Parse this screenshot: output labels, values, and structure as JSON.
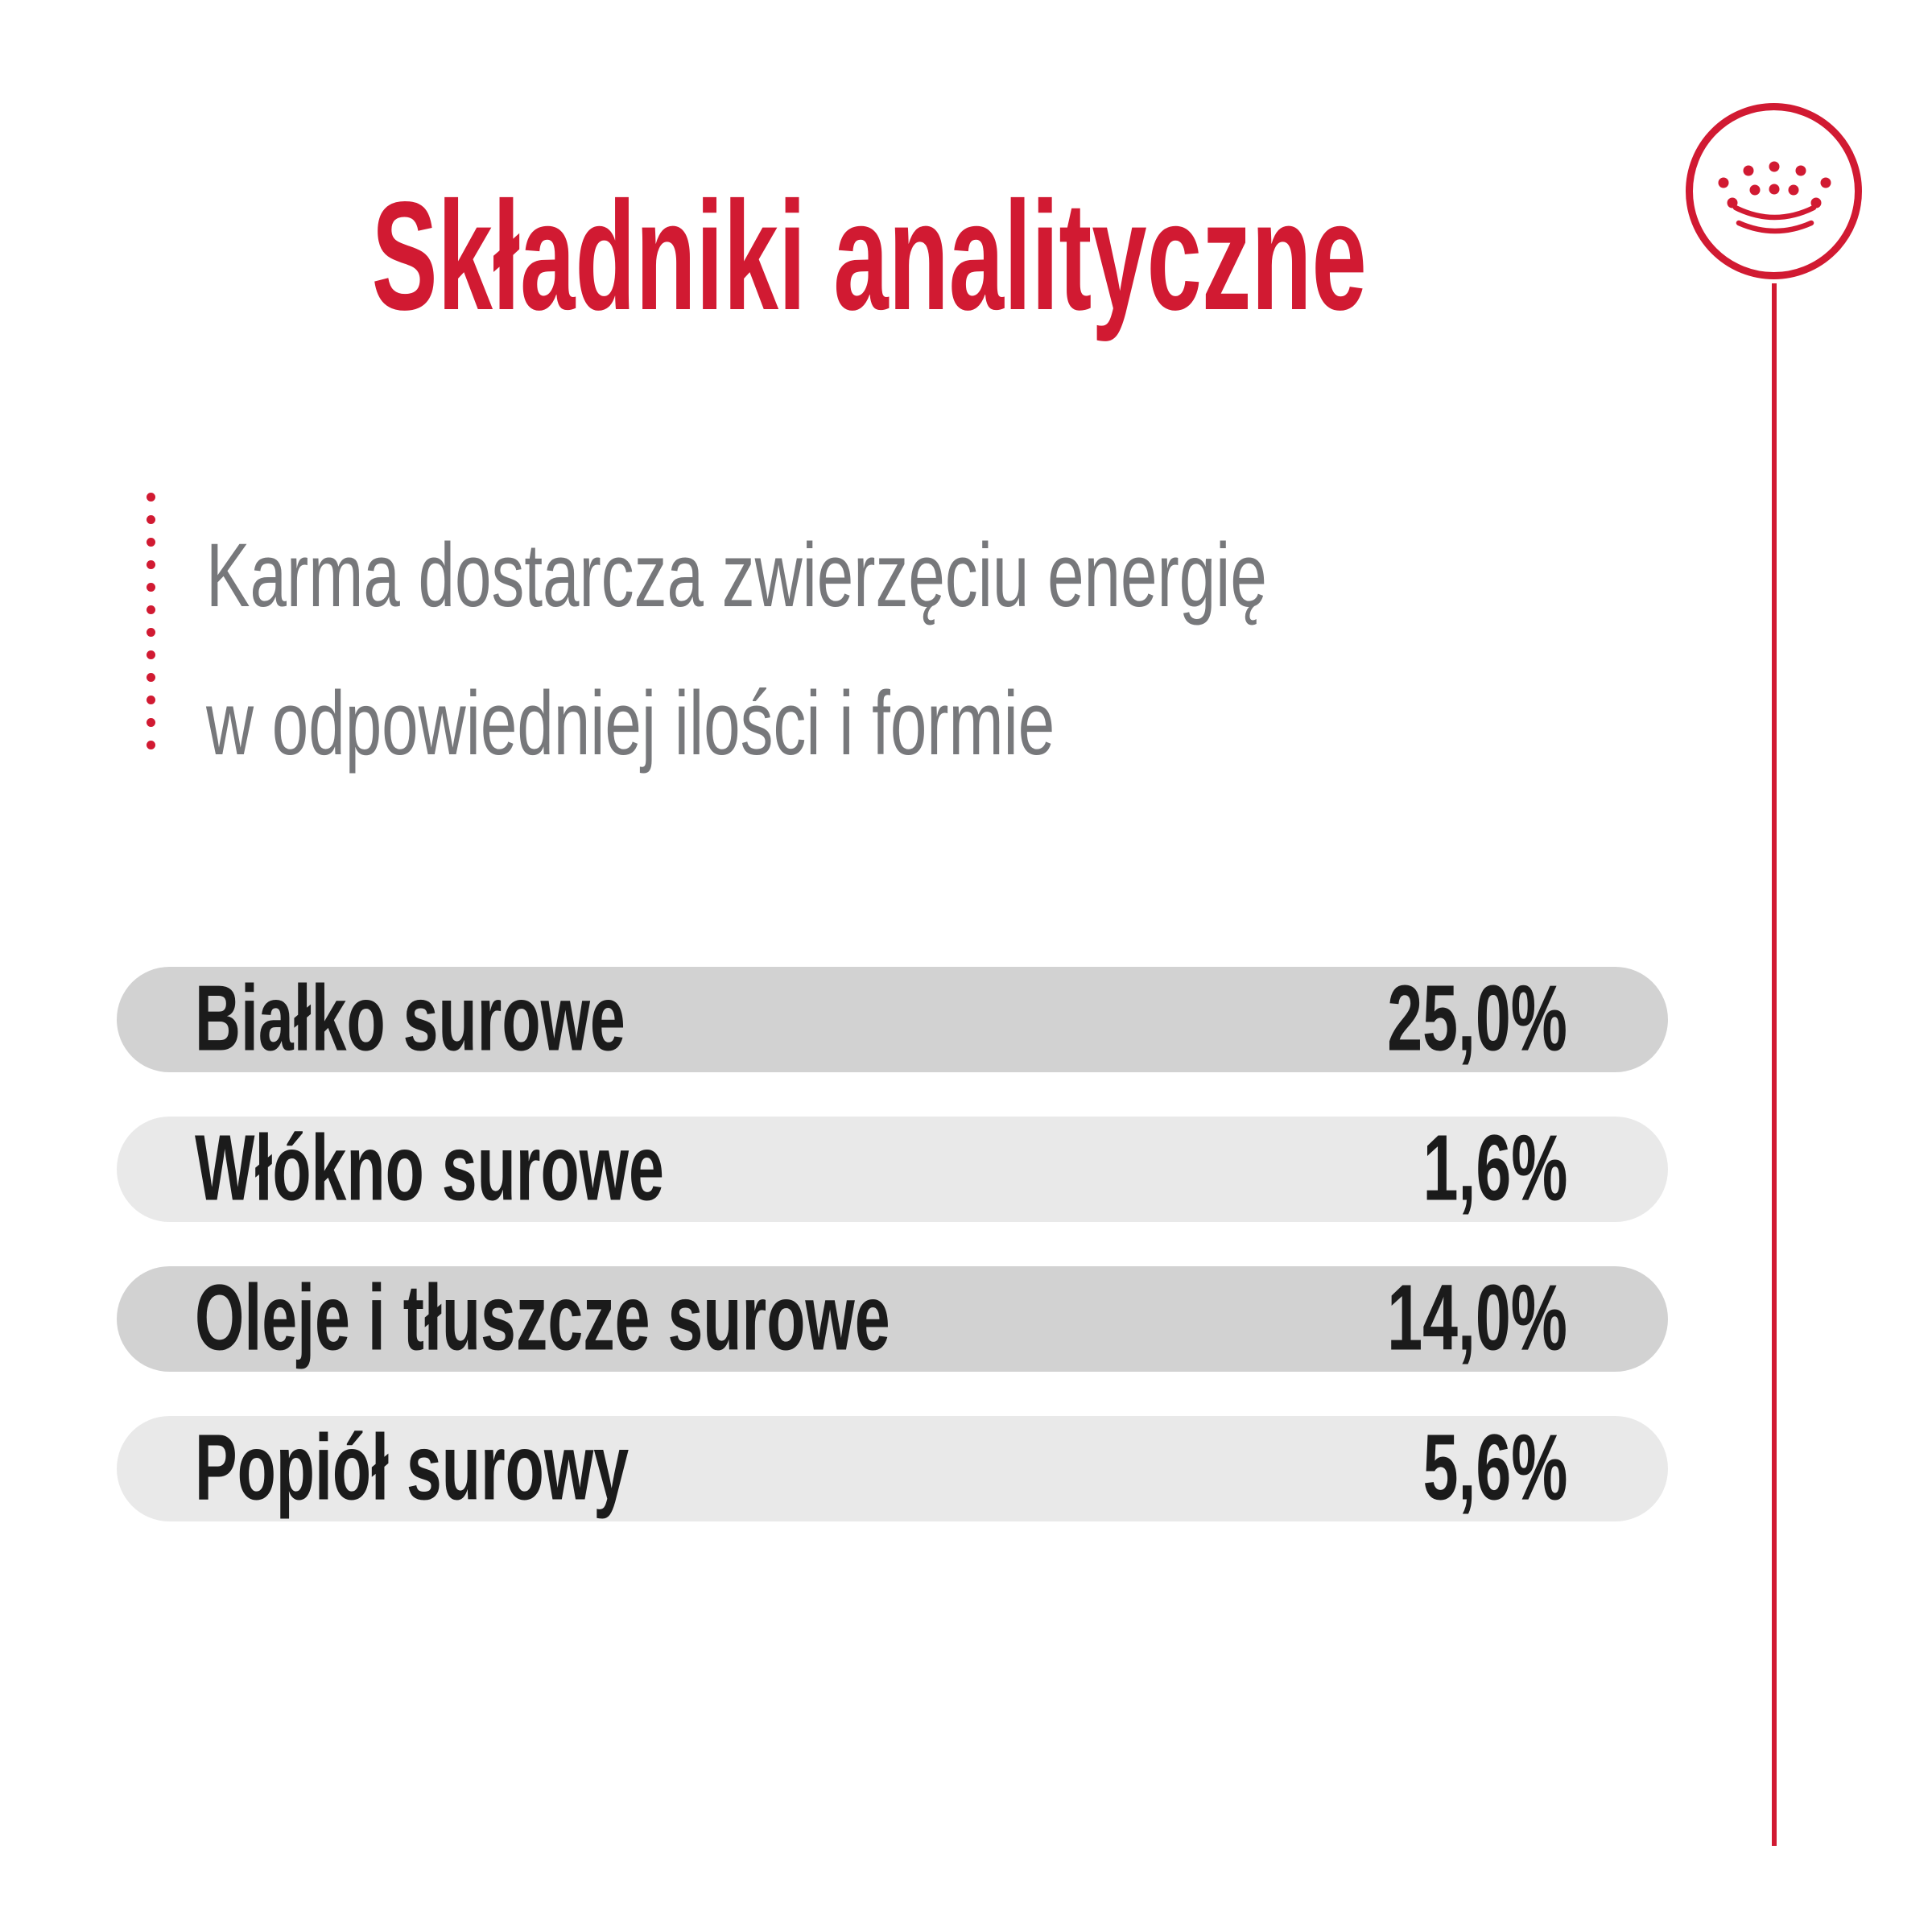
{
  "colors": {
    "brand_red": "#d11a32",
    "row_dark": "#d2d2d2",
    "row_light": "#e9e9e9",
    "text_gray": "#77787b",
    "text_dark": "#1b1b1b"
  },
  "header": {
    "title": "Składniki analityczne"
  },
  "intro": {
    "lines": [
      "Karma dostarcza zwierzęciu energię",
      "w odpowiedniej ilości i formie"
    ]
  },
  "table": {
    "rows": [
      {
        "label": "Białko surowe",
        "value": "25,0%"
      },
      {
        "label": "Włókno surowe",
        "value": "1,6%"
      },
      {
        "label": "Oleje i tłuszcze surowe",
        "value": "14,0%"
      },
      {
        "label": "Popiół surowy",
        "value": "5,6%"
      }
    ]
  },
  "branding": {
    "logo": "royal-canin-crown"
  }
}
